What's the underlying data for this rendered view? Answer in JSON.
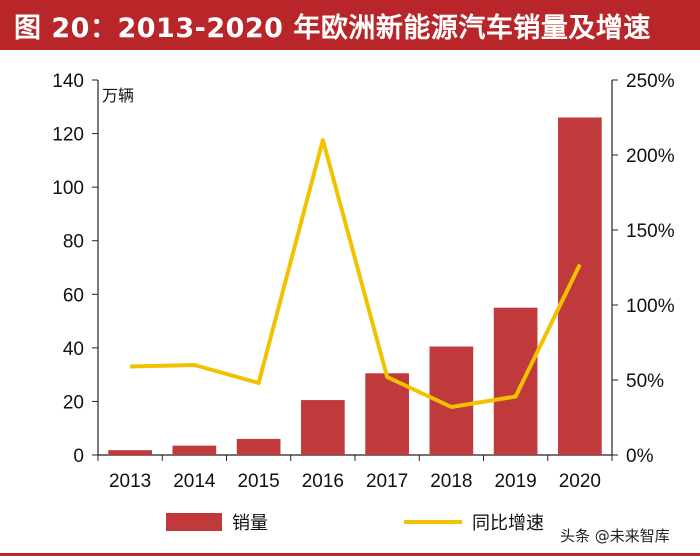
{
  "chart_data": {
    "type": "bar",
    "title": "图 20：2013-2020 年欧洲新能源汽车销量及增速",
    "ylabel": "万辆",
    "categories": [
      "2013",
      "2014",
      "2015",
      "2016",
      "2017",
      "2018",
      "2019",
      "2020"
    ],
    "series": [
      {
        "name": "销量",
        "type": "bar",
        "axis": "left",
        "values": [
          1.8,
          3.5,
          6.0,
          20.5,
          30.5,
          40.5,
          55.0,
          126.0
        ]
      },
      {
        "name": "同比增速",
        "type": "line",
        "axis": "right",
        "values": [
          59,
          60,
          48,
          210,
          52,
          32,
          39,
          127
        ]
      }
    ],
    "ylim": [
      0,
      140
    ],
    "y_ticks": [
      0,
      20,
      40,
      60,
      80,
      100,
      120,
      140
    ],
    "y2lim": [
      0,
      250
    ],
    "y2_ticks": [
      "0%",
      "50%",
      "100%",
      "150%",
      "200%",
      "250%"
    ],
    "grid": false,
    "legend_position": "bottom",
    "colors": {
      "bar": "#c0393b",
      "line": "#f2c200",
      "title_bg": "#b8262a"
    }
  },
  "watermark": "头条 @未来智库"
}
